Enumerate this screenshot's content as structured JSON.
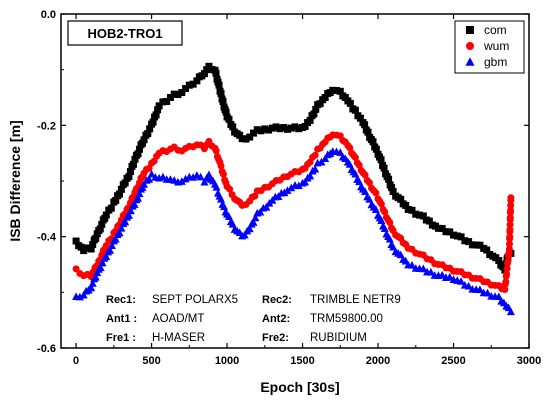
{
  "chart_data": {
    "type": "scatter",
    "station_label": "HOB2-TRO1",
    "xlabel": "Epoch [30s]",
    "ylabel": "ISB Difference [m]",
    "xlim": [
      -100,
      3000
    ],
    "ylim": [
      -0.6,
      0.0
    ],
    "xticks": [
      "0",
      "500",
      "1000",
      "1500",
      "2000",
      "2500",
      "3000"
    ],
    "xtick_values": [
      0,
      500,
      1000,
      1500,
      2000,
      2500,
      3000
    ],
    "yticks": [
      "-0.6",
      "-0.4",
      "-0.2",
      "0.0"
    ],
    "ytick_values": [
      -0.6,
      -0.4,
      -0.2,
      0.0
    ],
    "grid": false,
    "legend_position": "top-right",
    "series": [
      {
        "name": "com",
        "marker": "square",
        "color": "#000000",
        "points": [
          [
            0,
            -0.41
          ],
          [
            50,
            -0.425
          ],
          [
            100,
            -0.42
          ],
          [
            150,
            -0.39
          ],
          [
            200,
            -0.36
          ],
          [
            250,
            -0.34
          ],
          [
            300,
            -0.315
          ],
          [
            350,
            -0.29
          ],
          [
            400,
            -0.255
          ],
          [
            450,
            -0.225
          ],
          [
            500,
            -0.2
          ],
          [
            550,
            -0.165
          ],
          [
            600,
            -0.155
          ],
          [
            650,
            -0.145
          ],
          [
            700,
            -0.14
          ],
          [
            750,
            -0.13
          ],
          [
            800,
            -0.12
          ],
          [
            850,
            -0.105
          ],
          [
            880,
            -0.095
          ],
          [
            920,
            -0.1
          ],
          [
            960,
            -0.145
          ],
          [
            1000,
            -0.185
          ],
          [
            1050,
            -0.21
          ],
          [
            1100,
            -0.225
          ],
          [
            1150,
            -0.22
          ],
          [
            1200,
            -0.21
          ],
          [
            1300,
            -0.205
          ],
          [
            1400,
            -0.205
          ],
          [
            1500,
            -0.205
          ],
          [
            1550,
            -0.19
          ],
          [
            1600,
            -0.165
          ],
          [
            1650,
            -0.15
          ],
          [
            1700,
            -0.135
          ],
          [
            1750,
            -0.14
          ],
          [
            1800,
            -0.155
          ],
          [
            1850,
            -0.175
          ],
          [
            1900,
            -0.195
          ],
          [
            2000,
            -0.25
          ],
          [
            2100,
            -0.32
          ],
          [
            2200,
            -0.35
          ],
          [
            2300,
            -0.365
          ],
          [
            2400,
            -0.385
          ],
          [
            2500,
            -0.395
          ],
          [
            2600,
            -0.41
          ],
          [
            2700,
            -0.42
          ],
          [
            2800,
            -0.445
          ],
          [
            2840,
            -0.46
          ],
          [
            2860,
            -0.435
          ],
          [
            2880,
            -0.43
          ]
        ]
      },
      {
        "name": "wum",
        "marker": "circle",
        "color": "#ff0000",
        "points": [
          [
            0,
            -0.46
          ],
          [
            50,
            -0.47
          ],
          [
            100,
            -0.47
          ],
          [
            150,
            -0.445
          ],
          [
            200,
            -0.415
          ],
          [
            250,
            -0.395
          ],
          [
            300,
            -0.37
          ],
          [
            350,
            -0.345
          ],
          [
            400,
            -0.315
          ],
          [
            450,
            -0.285
          ],
          [
            500,
            -0.27
          ],
          [
            550,
            -0.25
          ],
          [
            600,
            -0.245
          ],
          [
            650,
            -0.24
          ],
          [
            700,
            -0.245
          ],
          [
            750,
            -0.24
          ],
          [
            800,
            -0.235
          ],
          [
            850,
            -0.24
          ],
          [
            880,
            -0.23
          ],
          [
            920,
            -0.24
          ],
          [
            960,
            -0.275
          ],
          [
            1000,
            -0.31
          ],
          [
            1050,
            -0.33
          ],
          [
            1100,
            -0.345
          ],
          [
            1150,
            -0.335
          ],
          [
            1200,
            -0.32
          ],
          [
            1300,
            -0.305
          ],
          [
            1400,
            -0.29
          ],
          [
            1500,
            -0.28
          ],
          [
            1550,
            -0.265
          ],
          [
            1600,
            -0.245
          ],
          [
            1650,
            -0.23
          ],
          [
            1700,
            -0.215
          ],
          [
            1750,
            -0.22
          ],
          [
            1800,
            -0.235
          ],
          [
            1850,
            -0.26
          ],
          [
            1900,
            -0.285
          ],
          [
            2000,
            -0.33
          ],
          [
            2100,
            -0.39
          ],
          [
            2200,
            -0.42
          ],
          [
            2300,
            -0.435
          ],
          [
            2400,
            -0.45
          ],
          [
            2500,
            -0.46
          ],
          [
            2600,
            -0.47
          ],
          [
            2700,
            -0.48
          ],
          [
            2800,
            -0.49
          ],
          [
            2840,
            -0.495
          ],
          [
            2870,
            -0.42
          ],
          [
            2880,
            -0.33
          ]
        ]
      },
      {
        "name": "gbm",
        "marker": "triangle",
        "color": "#0000ff",
        "points": [
          [
            0,
            -0.51
          ],
          [
            50,
            -0.505
          ],
          [
            100,
            -0.49
          ],
          [
            150,
            -0.46
          ],
          [
            200,
            -0.435
          ],
          [
            250,
            -0.41
          ],
          [
            300,
            -0.385
          ],
          [
            350,
            -0.36
          ],
          [
            400,
            -0.335
          ],
          [
            450,
            -0.305
          ],
          [
            500,
            -0.29
          ],
          [
            550,
            -0.295
          ],
          [
            600,
            -0.295
          ],
          [
            650,
            -0.3
          ],
          [
            700,
            -0.3
          ],
          [
            750,
            -0.295
          ],
          [
            800,
            -0.29
          ],
          [
            850,
            -0.3
          ],
          [
            880,
            -0.29
          ],
          [
            920,
            -0.305
          ],
          [
            960,
            -0.335
          ],
          [
            1000,
            -0.36
          ],
          [
            1050,
            -0.385
          ],
          [
            1100,
            -0.4
          ],
          [
            1150,
            -0.385
          ],
          [
            1200,
            -0.36
          ],
          [
            1300,
            -0.335
          ],
          [
            1400,
            -0.315
          ],
          [
            1500,
            -0.305
          ],
          [
            1550,
            -0.29
          ],
          [
            1600,
            -0.27
          ],
          [
            1650,
            -0.26
          ],
          [
            1700,
            -0.245
          ],
          [
            1750,
            -0.25
          ],
          [
            1800,
            -0.265
          ],
          [
            1850,
            -0.29
          ],
          [
            1900,
            -0.315
          ],
          [
            2000,
            -0.36
          ],
          [
            2100,
            -0.42
          ],
          [
            2200,
            -0.45
          ],
          [
            2300,
            -0.46
          ],
          [
            2400,
            -0.47
          ],
          [
            2500,
            -0.475
          ],
          [
            2600,
            -0.49
          ],
          [
            2700,
            -0.5
          ],
          [
            2800,
            -0.51
          ],
          [
            2850,
            -0.525
          ],
          [
            2880,
            -0.535
          ]
        ]
      }
    ],
    "annotations": [
      {
        "key": "Rec1:",
        "value": "SEPT POLARX5"
      },
      {
        "key": "Ant1 :",
        "value": "AOAD/MT"
      },
      {
        "key": "Fre1 :",
        "value": "H-MASER"
      },
      {
        "key": "Rec2:",
        "value": "TRIMBLE NETR9"
      },
      {
        "key": "Ant2:",
        "value": "TRM59800.00"
      },
      {
        "key": "Fre2:",
        "value": "RUBIDIUM"
      }
    ]
  }
}
